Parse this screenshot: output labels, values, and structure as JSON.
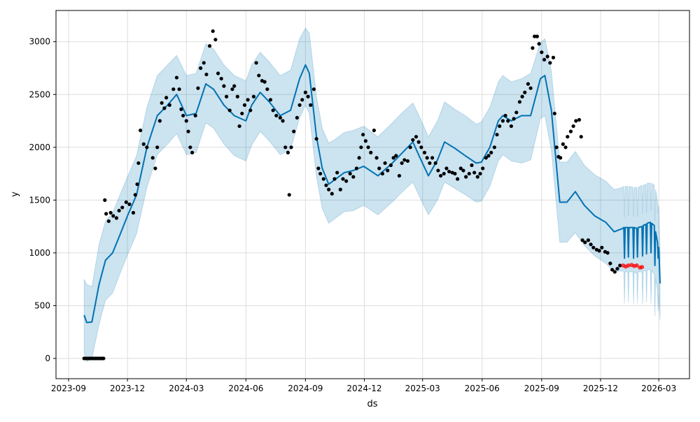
{
  "chart_data": {
    "type": "line",
    "title": "",
    "xlabel": "ds",
    "ylabel": "y",
    "x_origin": "2023-09-01",
    "x_unit": "days since x_origin",
    "ylim": [
      -190,
      3280
    ],
    "xlim_dates": [
      "2023-08-20",
      "2026-03-31"
    ],
    "grid": true,
    "colors": {
      "forecast": "#0072B2",
      "band": "#0072B2",
      "actual": "#000000",
      "test": "#ff0000"
    },
    "yticks": [
      "0",
      "500",
      "1000",
      "1500",
      "2000",
      "2500",
      "3000"
    ],
    "xticks": [
      "2023-09",
      "2023-12",
      "2024-03",
      "2024-06",
      "2024-09",
      "2024-12",
      "2025-03",
      "2025-06",
      "2025-09",
      "2025-12",
      "2026-03"
    ],
    "yhat": [
      [
        24,
        410
      ],
      [
        28,
        340
      ],
      [
        36,
        345
      ],
      [
        47,
        700
      ],
      [
        57,
        930
      ],
      [
        68,
        1000
      ],
      [
        78,
        1150
      ],
      [
        91,
        1350
      ],
      [
        105,
        1550
      ],
      [
        121,
        2000
      ],
      [
        137,
        2300
      ],
      [
        153,
        2400
      ],
      [
        167,
        2500
      ],
      [
        182,
        2300
      ],
      [
        197,
        2320
      ],
      [
        212,
        2600
      ],
      [
        224,
        2550
      ],
      [
        240,
        2400
      ],
      [
        256,
        2300
      ],
      [
        274,
        2250
      ],
      [
        283,
        2400
      ],
      [
        296,
        2520
      ],
      [
        310,
        2430
      ],
      [
        327,
        2300
      ],
      [
        343,
        2350
      ],
      [
        357,
        2650
      ],
      [
        366,
        2780
      ],
      [
        372,
        2700
      ],
      [
        383,
        2100
      ],
      [
        392,
        1800
      ],
      [
        402,
        1650
      ],
      [
        413,
        1700
      ],
      [
        426,
        1760
      ],
      [
        440,
        1780
      ],
      [
        456,
        1820
      ],
      [
        478,
        1730
      ],
      [
        500,
        1850
      ],
      [
        516,
        1950
      ],
      [
        532,
        2050
      ],
      [
        543,
        1900
      ],
      [
        556,
        1730
      ],
      [
        570,
        1880
      ],
      [
        581,
        2050
      ],
      [
        597,
        1990
      ],
      [
        613,
        1920
      ],
      [
        630,
        1850
      ],
      [
        638,
        1860
      ],
      [
        651,
        2000
      ],
      [
        664,
        2250
      ],
      [
        671,
        2300
      ],
      [
        684,
        2250
      ],
      [
        700,
        2300
      ],
      [
        714,
        2300
      ],
      [
        729,
        2650
      ],
      [
        736,
        2680
      ],
      [
        746,
        2350
      ],
      [
        759,
        1480
      ],
      [
        770,
        1480
      ],
      [
        783,
        1580
      ],
      [
        797,
        1450
      ],
      [
        813,
        1350
      ],
      [
        830,
        1290
      ],
      [
        843,
        1200
      ],
      [
        856,
        1230
      ],
      [
        858,
        1240
      ],
      [
        859,
        950
      ],
      [
        860,
        1240
      ],
      [
        864,
        1240
      ],
      [
        865,
        960
      ],
      [
        866,
        1240
      ],
      [
        872,
        1240
      ],
      [
        873,
        950
      ],
      [
        874,
        1240
      ],
      [
        878,
        1230
      ],
      [
        879,
        960
      ],
      [
        880,
        1240
      ],
      [
        886,
        1250
      ],
      [
        887,
        970
      ],
      [
        888,
        1260
      ],
      [
        892,
        1270
      ],
      [
        893,
        990
      ],
      [
        894,
        1280
      ],
      [
        899,
        1290
      ],
      [
        900,
        1000
      ],
      [
        901,
        1280
      ],
      [
        905,
        1260
      ],
      [
        906,
        880
      ],
      [
        907,
        1200
      ],
      [
        910,
        1100
      ],
      [
        911,
        950
      ],
      [
        912,
        1050
      ],
      [
        914,
        710
      ]
    ],
    "interval": [
      [
        24,
        50,
        750
      ],
      [
        28,
        -30,
        700
      ],
      [
        36,
        0,
        680
      ],
      [
        47,
        320,
        1080
      ],
      [
        57,
        550,
        1300
      ],
      [
        68,
        620,
        1380
      ],
      [
        78,
        780,
        1530
      ],
      [
        91,
        980,
        1720
      ],
      [
        105,
        1180,
        1920
      ],
      [
        121,
        1620,
        2380
      ],
      [
        137,
        1930,
        2680
      ],
      [
        153,
        2030,
        2780
      ],
      [
        167,
        2130,
        2870
      ],
      [
        182,
        1930,
        2680
      ],
      [
        197,
        1950,
        2700
      ],
      [
        212,
        2230,
        2980
      ],
      [
        224,
        2180,
        2930
      ],
      [
        240,
        2030,
        2780
      ],
      [
        256,
        1920,
        2680
      ],
      [
        274,
        1870,
        2630
      ],
      [
        283,
        2020,
        2780
      ],
      [
        296,
        2150,
        2900
      ],
      [
        310,
        2060,
        2810
      ],
      [
        327,
        1930,
        2680
      ],
      [
        343,
        1980,
        2730
      ],
      [
        357,
        2280,
        3030
      ],
      [
        366,
        2400,
        3130
      ],
      [
        372,
        2320,
        3080
      ],
      [
        383,
        1720,
        2480
      ],
      [
        392,
        1420,
        2180
      ],
      [
        402,
        1280,
        2040
      ],
      [
        413,
        1330,
        2080
      ],
      [
        426,
        1390,
        2140
      ],
      [
        440,
        1400,
        2160
      ],
      [
        456,
        1450,
        2200
      ],
      [
        478,
        1360,
        2100
      ],
      [
        500,
        1480,
        2230
      ],
      [
        516,
        1580,
        2330
      ],
      [
        532,
        1670,
        2420
      ],
      [
        543,
        1520,
        2280
      ],
      [
        556,
        1360,
        2100
      ],
      [
        570,
        1500,
        2250
      ],
      [
        581,
        1670,
        2430
      ],
      [
        597,
        1610,
        2360
      ],
      [
        613,
        1550,
        2300
      ],
      [
        630,
        1480,
        2220
      ],
      [
        638,
        1490,
        2240
      ],
      [
        651,
        1630,
        2380
      ],
      [
        664,
        1870,
        2620
      ],
      [
        671,
        1930,
        2680
      ],
      [
        684,
        1870,
        2620
      ],
      [
        700,
        1850,
        2650
      ],
      [
        714,
        1880,
        2700
      ],
      [
        729,
        2270,
        2990
      ],
      [
        736,
        2300,
        3030
      ],
      [
        746,
        1970,
        2720
      ],
      [
        759,
        1100,
        1860
      ],
      [
        770,
        1100,
        1860
      ],
      [
        783,
        1190,
        1960
      ],
      [
        797,
        1070,
        1830
      ],
      [
        813,
        970,
        1740
      ],
      [
        830,
        900,
        1680
      ],
      [
        843,
        820,
        1600
      ],
      [
        856,
        830,
        1620
      ],
      [
        858,
        820,
        1630
      ],
      [
        859,
        520,
        1340
      ],
      [
        860,
        820,
        1630
      ],
      [
        864,
        820,
        1630
      ],
      [
        865,
        530,
        1350
      ],
      [
        866,
        820,
        1630
      ],
      [
        872,
        820,
        1620
      ],
      [
        873,
        510,
        1340
      ],
      [
        874,
        820,
        1620
      ],
      [
        878,
        800,
        1620
      ],
      [
        879,
        520,
        1340
      ],
      [
        880,
        820,
        1620
      ],
      [
        886,
        820,
        1640
      ],
      [
        887,
        510,
        1370
      ],
      [
        888,
        830,
        1640
      ],
      [
        892,
        830,
        1650
      ],
      [
        893,
        530,
        1380
      ],
      [
        894,
        840,
        1660
      ],
      [
        899,
        840,
        1660
      ],
      [
        900,
        520,
        1400
      ],
      [
        901,
        830,
        1660
      ],
      [
        905,
        800,
        1640
      ],
      [
        906,
        400,
        1300
      ],
      [
        907,
        760,
        1600
      ],
      [
        910,
        640,
        1500
      ],
      [
        911,
        450,
        1380
      ],
      [
        912,
        600,
        1450
      ],
      [
        914,
        360,
        1030
      ]
    ],
    "actual": [
      [
        24,
        0
      ],
      [
        27,
        0
      ],
      [
        30,
        0
      ],
      [
        33,
        0
      ],
      [
        36,
        0
      ],
      [
        39,
        0
      ],
      [
        42,
        0
      ],
      [
        45,
        0
      ],
      [
        48,
        0
      ],
      [
        51,
        0
      ],
      [
        54,
        0
      ],
      [
        56,
        1500
      ],
      [
        58,
        1370
      ],
      [
        62,
        1300
      ],
      [
        65,
        1380
      ],
      [
        69,
        1350
      ],
      [
        74,
        1330
      ],
      [
        78,
        1400
      ],
      [
        83,
        1430
      ],
      [
        89,
        1480
      ],
      [
        94,
        1460
      ],
      [
        100,
        1380
      ],
      [
        103,
        1550
      ],
      [
        106,
        1650
      ],
      [
        108,
        1850
      ],
      [
        111,
        2160
      ],
      [
        116,
        2030
      ],
      [
        121,
        2000
      ],
      [
        130,
        1900
      ],
      [
        134,
        1800
      ],
      [
        137,
        2000
      ],
      [
        141,
        2250
      ],
      [
        144,
        2420
      ],
      [
        148,
        2370
      ],
      [
        151,
        2470
      ],
      [
        156,
        2400
      ],
      [
        162,
        2550
      ],
      [
        167,
        2660
      ],
      [
        171,
        2550
      ],
      [
        174,
        2360
      ],
      [
        177,
        2300
      ],
      [
        182,
        2250
      ],
      [
        185,
        2150
      ],
      [
        188,
        2000
      ],
      [
        191,
        1950
      ],
      [
        196,
        2300
      ],
      [
        200,
        2560
      ],
      [
        204,
        2750
      ],
      [
        209,
        2800
      ],
      [
        213,
        2690
      ],
      [
        218,
        2960
      ],
      [
        223,
        3100
      ],
      [
        227,
        3020
      ],
      [
        231,
        2700
      ],
      [
        236,
        2650
      ],
      [
        240,
        2580
      ],
      [
        244,
        2480
      ],
      [
        249,
        2350
      ],
      [
        253,
        2550
      ],
      [
        256,
        2580
      ],
      [
        261,
        2480
      ],
      [
        264,
        2200
      ],
      [
        268,
        2320
      ],
      [
        272,
        2400
      ],
      [
        277,
        2450
      ],
      [
        281,
        2350
      ],
      [
        286,
        2480
      ],
      [
        290,
        2800
      ],
      [
        294,
        2680
      ],
      [
        299,
        2630
      ],
      [
        303,
        2620
      ],
      [
        307,
        2550
      ],
      [
        312,
        2450
      ],
      [
        316,
        2350
      ],
      [
        321,
        2300
      ],
      [
        327,
        2280
      ],
      [
        331,
        2250
      ],
      [
        335,
        2000
      ],
      [
        339,
        1950
      ],
      [
        341,
        1550
      ],
      [
        344,
        2000
      ],
      [
        348,
        2150
      ],
      [
        353,
        2280
      ],
      [
        357,
        2400
      ],
      [
        361,
        2450
      ],
      [
        366,
        2520
      ],
      [
        370,
        2480
      ],
      [
        374,
        2400
      ],
      [
        379,
        2550
      ],
      [
        383,
        2080
      ],
      [
        386,
        1800
      ],
      [
        389,
        1750
      ],
      [
        394,
        1700
      ],
      [
        398,
        1640
      ],
      [
        402,
        1600
      ],
      [
        407,
        1560
      ],
      [
        411,
        1700
      ],
      [
        415,
        1760
      ],
      [
        420,
        1600
      ],
      [
        424,
        1700
      ],
      [
        429,
        1680
      ],
      [
        435,
        1750
      ],
      [
        440,
        1720
      ],
      [
        445,
        1800
      ],
      [
        449,
        1900
      ],
      [
        452,
        2000
      ],
      [
        455,
        2120
      ],
      [
        459,
        2060
      ],
      [
        463,
        2000
      ],
      [
        467,
        1950
      ],
      [
        472,
        2160
      ],
      [
        476,
        1900
      ],
      [
        480,
        1800
      ],
      [
        485,
        1750
      ],
      [
        489,
        1850
      ],
      [
        493,
        1780
      ],
      [
        498,
        1830
      ],
      [
        502,
        1900
      ],
      [
        506,
        1920
      ],
      [
        511,
        1730
      ],
      [
        515,
        1850
      ],
      [
        519,
        1880
      ],
      [
        524,
        1870
      ],
      [
        528,
        2000
      ],
      [
        532,
        2070
      ],
      [
        537,
        2100
      ],
      [
        541,
        2050
      ],
      [
        545,
        2000
      ],
      [
        550,
        1950
      ],
      [
        554,
        1900
      ],
      [
        558,
        1850
      ],
      [
        562,
        1900
      ],
      [
        567,
        1850
      ],
      [
        571,
        1780
      ],
      [
        575,
        1730
      ],
      [
        580,
        1750
      ],
      [
        584,
        1800
      ],
      [
        588,
        1770
      ],
      [
        593,
        1760
      ],
      [
        597,
        1750
      ],
      [
        601,
        1700
      ],
      [
        606,
        1800
      ],
      [
        610,
        1780
      ],
      [
        614,
        1720
      ],
      [
        619,
        1750
      ],
      [
        623,
        1830
      ],
      [
        627,
        1760
      ],
      [
        632,
        1720
      ],
      [
        636,
        1750
      ],
      [
        640,
        1800
      ],
      [
        645,
        1900
      ],
      [
        649,
        1920
      ],
      [
        653,
        1950
      ],
      [
        658,
        2000
      ],
      [
        662,
        2120
      ],
      [
        666,
        2200
      ],
      [
        671,
        2250
      ],
      [
        675,
        2300
      ],
      [
        679,
        2250
      ],
      [
        684,
        2200
      ],
      [
        688,
        2270
      ],
      [
        692,
        2330
      ],
      [
        697,
        2430
      ],
      [
        701,
        2480
      ],
      [
        705,
        2520
      ],
      [
        710,
        2600
      ],
      [
        714,
        2560
      ],
      [
        717,
        2940
      ],
      [
        720,
        3050
      ],
      [
        724,
        3050
      ],
      [
        727,
        2980
      ],
      [
        731,
        2900
      ],
      [
        735,
        2830
      ],
      [
        740,
        2860
      ],
      [
        744,
        2800
      ],
      [
        749,
        2850
      ],
      [
        751,
        2320
      ],
      [
        754,
        2000
      ],
      [
        757,
        1910
      ],
      [
        760,
        1900
      ],
      [
        764,
        2030
      ],
      [
        768,
        2000
      ],
      [
        771,
        2100
      ],
      [
        776,
        2150
      ],
      [
        780,
        2200
      ],
      [
        784,
        2250
      ],
      [
        789,
        2260
      ],
      [
        792,
        2100
      ],
      [
        794,
        1120
      ],
      [
        798,
        1100
      ],
      [
        803,
        1120
      ],
      [
        807,
        1080
      ],
      [
        811,
        1050
      ],
      [
        816,
        1030
      ],
      [
        820,
        1020
      ],
      [
        824,
        1050
      ],
      [
        829,
        1010
      ],
      [
        833,
        1000
      ],
      [
        837,
        900
      ],
      [
        840,
        840
      ],
      [
        844,
        820
      ],
      [
        848,
        850
      ],
      [
        852,
        880
      ]
    ],
    "test": [
      [
        857,
        880
      ],
      [
        861,
        870
      ],
      [
        865,
        880
      ],
      [
        870,
        885
      ],
      [
        874,
        875
      ],
      [
        878,
        880
      ],
      [
        883,
        860
      ],
      [
        886,
        865
      ]
    ]
  }
}
